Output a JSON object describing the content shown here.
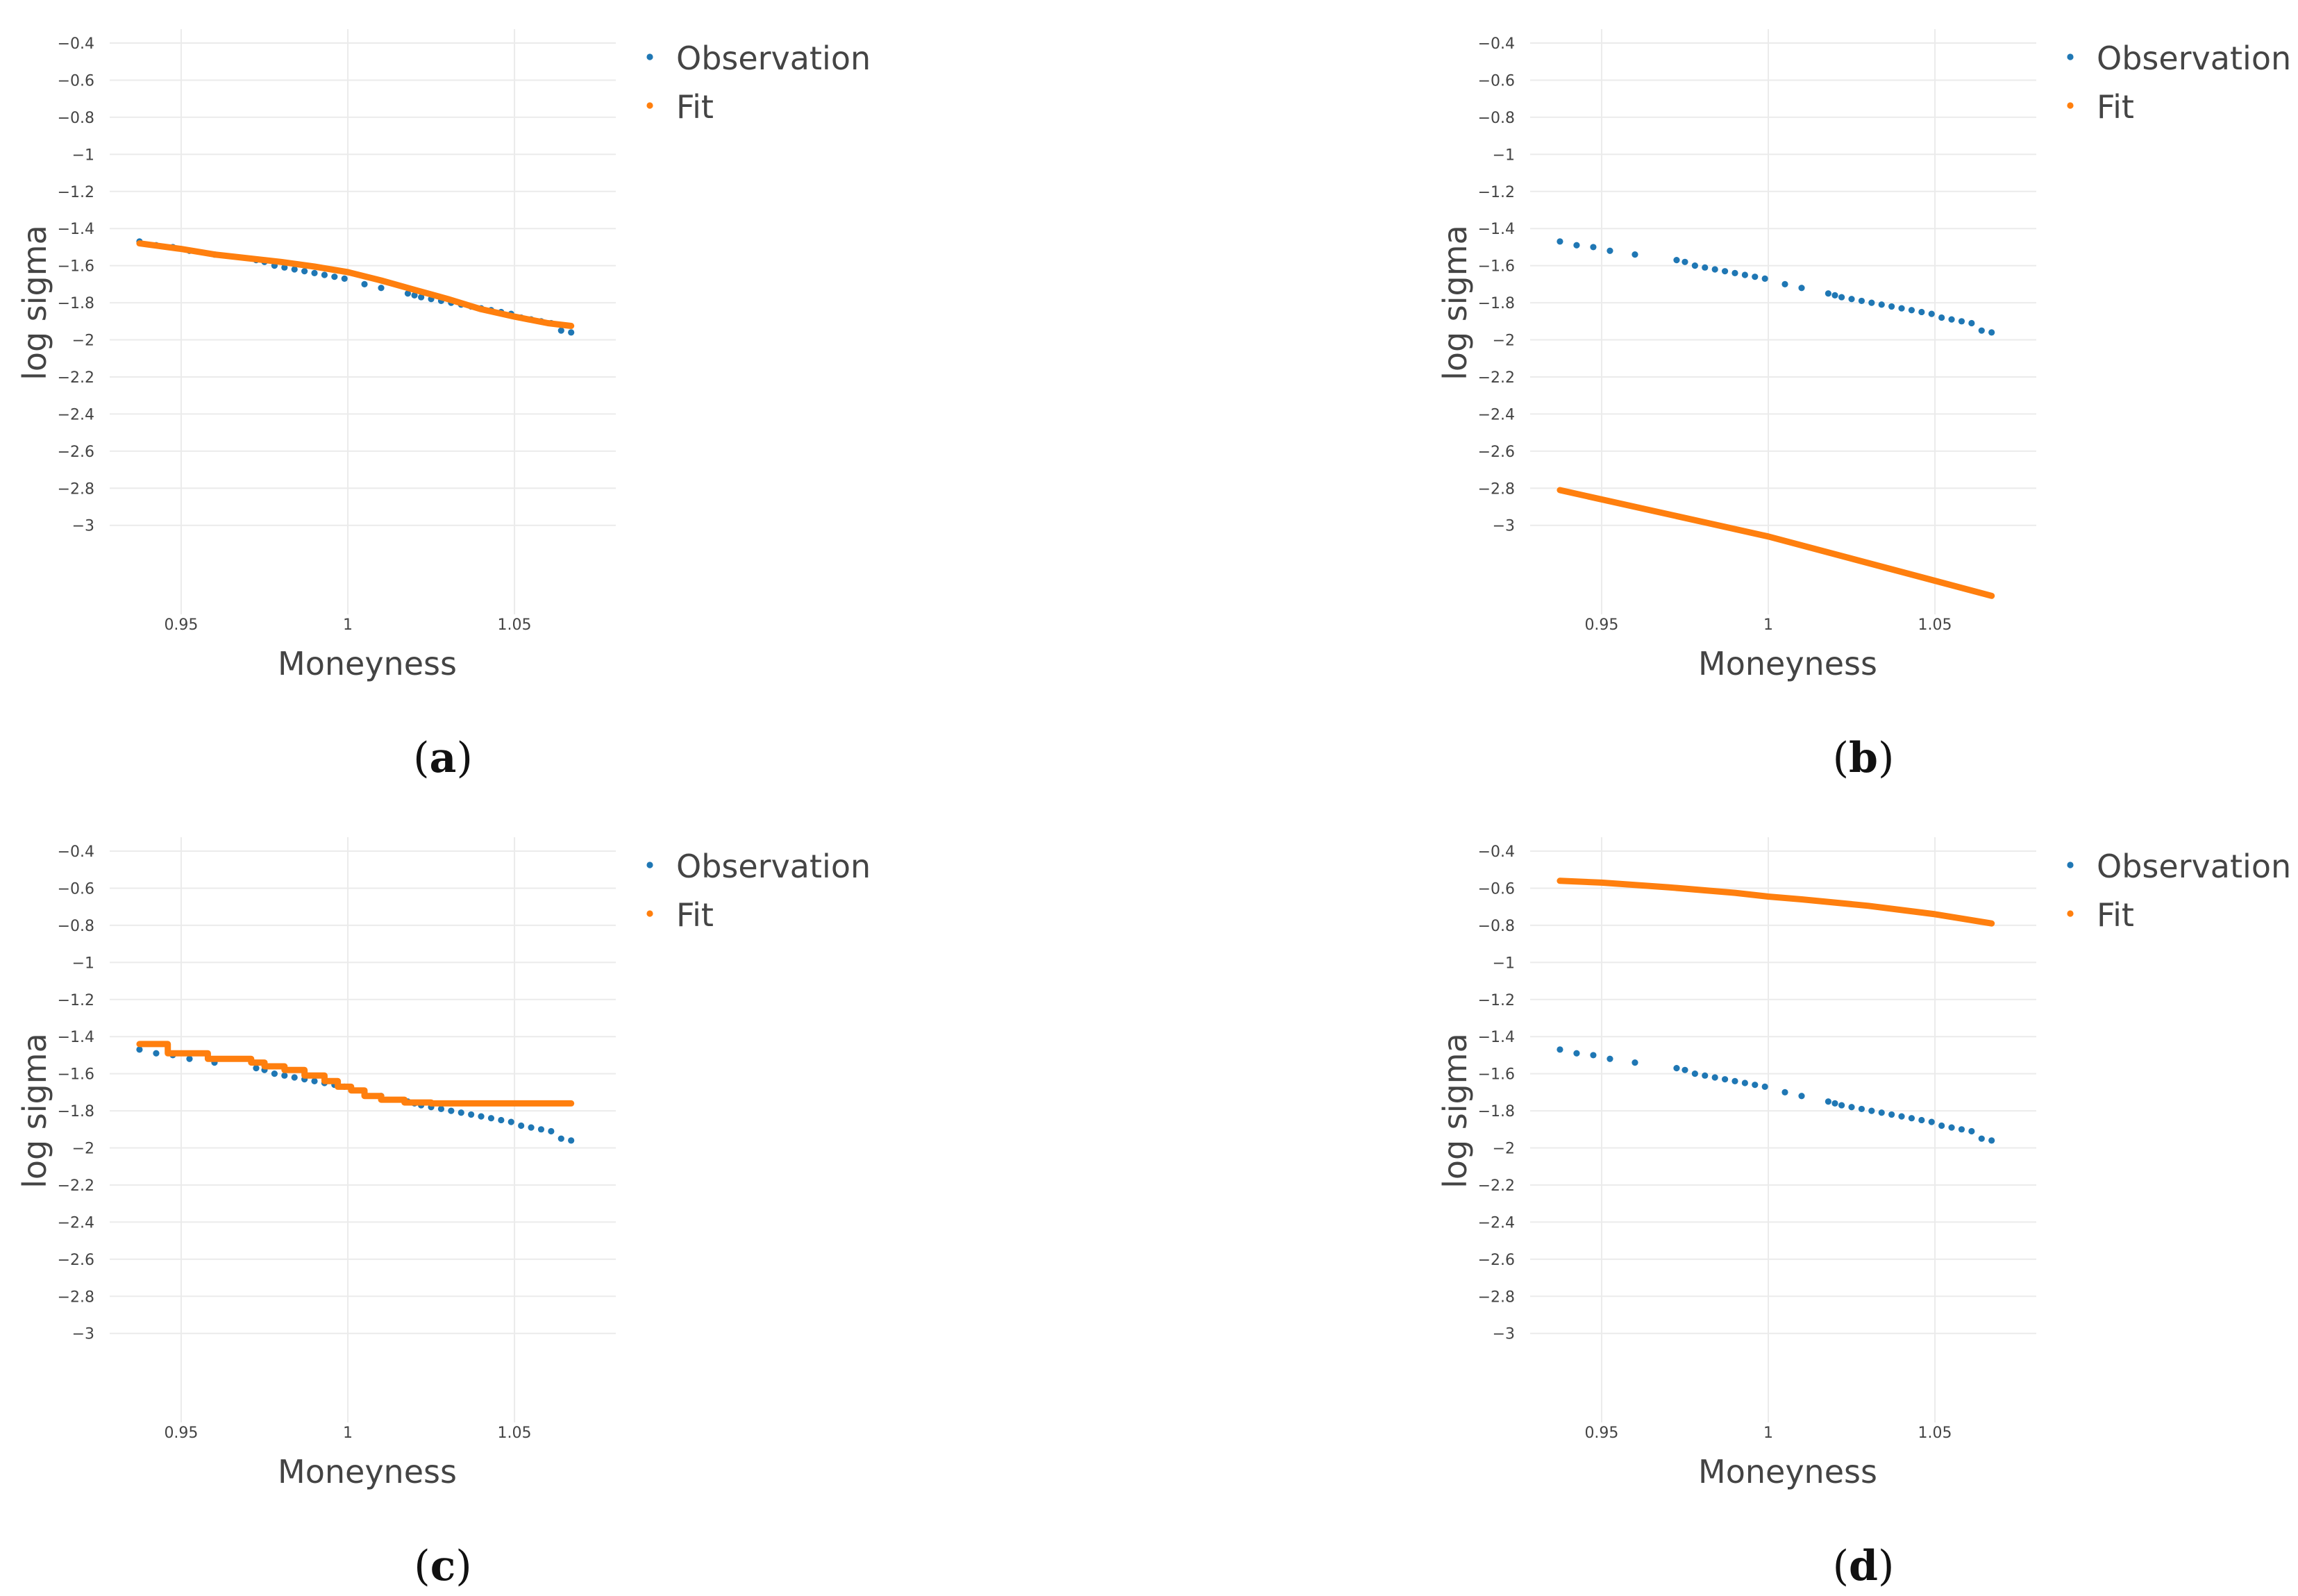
{
  "figure": {
    "colors": {
      "observation": "#1f77b4",
      "fit": "#ff7f0e"
    }
  },
  "chart_data": [
    {
      "type": "scatter",
      "panel_label": "a",
      "xlabel": "Moneyness",
      "ylabel": "log sigma",
      "xlim": [
        0.9296,
        1.0804
      ],
      "ylim": [
        -3.48,
        -0.4
      ],
      "x_ticks": [
        0.95,
        1,
        1.05
      ],
      "x_tick_labels": [
        "0.95",
        "1",
        "1.05"
      ],
      "y_ticks": [
        -0.4,
        -0.6,
        -0.8,
        -1,
        -1.2,
        -1.4,
        -1.6,
        -1.8,
        -2,
        -2.2,
        -2.4,
        -2.6,
        -2.8,
        -3
      ],
      "y_tick_labels": [
        "−0.4",
        "−0.6",
        "−0.8",
        "−1",
        "−1.2",
        "−1.4",
        "−1.6",
        "−1.8",
        "−2",
        "−2.2",
        "−2.4",
        "−2.6",
        "−2.8",
        "−3"
      ],
      "legend": {
        "placement": "top-right",
        "entries": [
          "Observation",
          "Fit"
        ]
      },
      "series": [
        {
          "name": "Observation",
          "mode": "markers",
          "x": [
            0.9375,
            0.9425,
            0.9475,
            0.9525,
            0.96,
            0.9725,
            0.975,
            0.978,
            0.981,
            0.984,
            0.987,
            0.99,
            0.993,
            0.996,
            0.999,
            1.005,
            1.01,
            1.018,
            1.02,
            1.022,
            1.025,
            1.028,
            1.031,
            1.034,
            1.037,
            1.04,
            1.043,
            1.046,
            1.049,
            1.052,
            1.055,
            1.058,
            1.061,
            1.064,
            1.067
          ],
          "y": [
            -1.47,
            -1.49,
            -1.5,
            -1.52,
            -1.54,
            -1.57,
            -1.58,
            -1.6,
            -1.61,
            -1.62,
            -1.63,
            -1.64,
            -1.65,
            -1.66,
            -1.67,
            -1.7,
            -1.72,
            -1.75,
            -1.76,
            -1.77,
            -1.78,
            -1.79,
            -1.8,
            -1.81,
            -1.82,
            -1.83,
            -1.84,
            -1.85,
            -1.86,
            -1.88,
            -1.89,
            -1.9,
            -1.91,
            -1.95,
            -1.96
          ]
        },
        {
          "name": "Fit",
          "mode": "lines",
          "x": [
            0.9375,
            0.95,
            0.96,
            0.97,
            0.98,
            0.99,
            1.0,
            1.01,
            1.02,
            1.03,
            1.04,
            1.05,
            1.06,
            1.067
          ],
          "y": [
            -1.48,
            -1.51,
            -1.54,
            -1.56,
            -1.58,
            -1.605,
            -1.635,
            -1.68,
            -1.73,
            -1.78,
            -1.835,
            -1.875,
            -1.91,
            -1.925
          ]
        }
      ]
    },
    {
      "type": "scatter",
      "panel_label": "b",
      "xlabel": "Moneyness",
      "ylabel": "log sigma",
      "xlim": [
        0.9296,
        1.0804
      ],
      "ylim": [
        -3.48,
        -0.4
      ],
      "x_ticks": [
        0.95,
        1,
        1.05
      ],
      "x_tick_labels": [
        "0.95",
        "1",
        "1.05"
      ],
      "y_ticks": [
        -0.4,
        -0.6,
        -0.8,
        -1,
        -1.2,
        -1.4,
        -1.6,
        -1.8,
        -2,
        -2.2,
        -2.4,
        -2.6,
        -2.8,
        -3
      ],
      "y_tick_labels": [
        "−0.4",
        "−0.6",
        "−0.8",
        "−1",
        "−1.2",
        "−1.4",
        "−1.6",
        "−1.8",
        "−2",
        "−2.2",
        "−2.4",
        "−2.6",
        "−2.8",
        "−3"
      ],
      "legend": {
        "placement": "top-right",
        "entries": [
          "Observation",
          "Fit"
        ]
      },
      "series": [
        {
          "name": "Observation",
          "mode": "markers",
          "x": [
            0.9375,
            0.9425,
            0.9475,
            0.9525,
            0.96,
            0.9725,
            0.975,
            0.978,
            0.981,
            0.984,
            0.987,
            0.99,
            0.993,
            0.996,
            0.999,
            1.005,
            1.01,
            1.018,
            1.02,
            1.022,
            1.025,
            1.028,
            1.031,
            1.034,
            1.037,
            1.04,
            1.043,
            1.046,
            1.049,
            1.052,
            1.055,
            1.058,
            1.061,
            1.064,
            1.067
          ],
          "y": [
            -1.47,
            -1.49,
            -1.5,
            -1.52,
            -1.54,
            -1.57,
            -1.58,
            -1.6,
            -1.61,
            -1.62,
            -1.63,
            -1.64,
            -1.65,
            -1.66,
            -1.67,
            -1.7,
            -1.72,
            -1.75,
            -1.76,
            -1.77,
            -1.78,
            -1.79,
            -1.8,
            -1.81,
            -1.82,
            -1.83,
            -1.84,
            -1.85,
            -1.86,
            -1.88,
            -1.89,
            -1.9,
            -1.91,
            -1.95,
            -1.96
          ]
        },
        {
          "name": "Fit",
          "mode": "lines",
          "x": [
            0.9375,
            1.0,
            1.067
          ],
          "y": [
            -2.81,
            -3.06,
            -3.38
          ]
        }
      ]
    },
    {
      "type": "scatter",
      "panel_label": "c",
      "xlabel": "Moneyness",
      "ylabel": "log sigma",
      "xlim": [
        0.9296,
        1.0804
      ],
      "ylim": [
        -3.48,
        -0.4
      ],
      "x_ticks": [
        0.95,
        1,
        1.05
      ],
      "x_tick_labels": [
        "0.95",
        "1",
        "1.05"
      ],
      "y_ticks": [
        -0.4,
        -0.6,
        -0.8,
        -1,
        -1.2,
        -1.4,
        -1.6,
        -1.8,
        -2,
        -2.2,
        -2.4,
        -2.6,
        -2.8,
        -3
      ],
      "y_tick_labels": [
        "−0.4",
        "−0.6",
        "−0.8",
        "−1",
        "−1.2",
        "−1.4",
        "−1.6",
        "−1.8",
        "−2",
        "−2.2",
        "−2.4",
        "−2.6",
        "−2.8",
        "−3"
      ],
      "legend": {
        "placement": "top-right",
        "entries": [
          "Observation",
          "Fit"
        ]
      },
      "series": [
        {
          "name": "Observation",
          "mode": "markers",
          "x": [
            0.9375,
            0.9425,
            0.9475,
            0.9525,
            0.96,
            0.9725,
            0.975,
            0.978,
            0.981,
            0.984,
            0.987,
            0.99,
            0.993,
            0.996,
            0.999,
            1.005,
            1.01,
            1.018,
            1.02,
            1.022,
            1.025,
            1.028,
            1.031,
            1.034,
            1.037,
            1.04,
            1.043,
            1.046,
            1.049,
            1.052,
            1.055,
            1.058,
            1.061,
            1.064,
            1.067
          ],
          "y": [
            -1.47,
            -1.49,
            -1.5,
            -1.52,
            -1.54,
            -1.57,
            -1.58,
            -1.6,
            -1.61,
            -1.62,
            -1.63,
            -1.64,
            -1.65,
            -1.66,
            -1.67,
            -1.7,
            -1.72,
            -1.75,
            -1.76,
            -1.77,
            -1.78,
            -1.79,
            -1.8,
            -1.81,
            -1.82,
            -1.83,
            -1.84,
            -1.85,
            -1.86,
            -1.88,
            -1.89,
            -1.9,
            -1.91,
            -1.95,
            -1.96
          ]
        },
        {
          "name": "Fit",
          "mode": "lines",
          "x": [
            0.9375,
            0.946,
            0.946,
            0.958,
            0.958,
            0.971,
            0.971,
            0.975,
            0.975,
            0.981,
            0.981,
            0.987,
            0.987,
            0.993,
            0.993,
            0.997,
            0.997,
            1.001,
            1.001,
            1.005,
            1.005,
            1.01,
            1.01,
            1.017,
            1.017,
            1.025,
            1.025,
            1.067
          ],
          "y": [
            -1.44,
            -1.44,
            -1.49,
            -1.49,
            -1.52,
            -1.52,
            -1.54,
            -1.54,
            -1.56,
            -1.56,
            -1.58,
            -1.58,
            -1.61,
            -1.61,
            -1.64,
            -1.64,
            -1.67,
            -1.67,
            -1.69,
            -1.69,
            -1.72,
            -1.72,
            -1.74,
            -1.74,
            -1.755,
            -1.755,
            -1.76,
            -1.76
          ]
        }
      ]
    },
    {
      "type": "scatter",
      "panel_label": "d",
      "xlabel": "Moneyness",
      "ylabel": "log sigma",
      "xlim": [
        0.9296,
        1.0804
      ],
      "ylim": [
        -3.48,
        -0.4
      ],
      "x_ticks": [
        0.95,
        1,
        1.05
      ],
      "x_tick_labels": [
        "0.95",
        "1",
        "1.05"
      ],
      "y_ticks": [
        -0.4,
        -0.6,
        -0.8,
        -1,
        -1.2,
        -1.4,
        -1.6,
        -1.8,
        -2,
        -2.2,
        -2.4,
        -2.6,
        -2.8,
        -3
      ],
      "y_tick_labels": [
        "−0.4",
        "−0.6",
        "−0.8",
        "−1",
        "−1.2",
        "−1.4",
        "−1.6",
        "−1.8",
        "−2",
        "−2.2",
        "−2.4",
        "−2.6",
        "−2.8",
        "−3"
      ],
      "legend": {
        "placement": "top-right",
        "entries": [
          "Observation",
          "Fit"
        ]
      },
      "series": [
        {
          "name": "Observation",
          "mode": "markers",
          "x": [
            0.9375,
            0.9425,
            0.9475,
            0.9525,
            0.96,
            0.9725,
            0.975,
            0.978,
            0.981,
            0.984,
            0.987,
            0.99,
            0.993,
            0.996,
            0.999,
            1.005,
            1.01,
            1.018,
            1.02,
            1.022,
            1.025,
            1.028,
            1.031,
            1.034,
            1.037,
            1.04,
            1.043,
            1.046,
            1.049,
            1.052,
            1.055,
            1.058,
            1.061,
            1.064,
            1.067
          ],
          "y": [
            -1.47,
            -1.49,
            -1.5,
            -1.52,
            -1.54,
            -1.57,
            -1.58,
            -1.6,
            -1.61,
            -1.62,
            -1.63,
            -1.64,
            -1.65,
            -1.66,
            -1.67,
            -1.7,
            -1.72,
            -1.75,
            -1.76,
            -1.77,
            -1.78,
            -1.79,
            -1.8,
            -1.81,
            -1.82,
            -1.83,
            -1.84,
            -1.85,
            -1.86,
            -1.88,
            -1.89,
            -1.9,
            -1.91,
            -1.95,
            -1.96
          ]
        },
        {
          "name": "Fit",
          "mode": "lines",
          "x": [
            0.9375,
            0.95,
            0.97,
            0.99,
            1.0,
            1.01,
            1.03,
            1.05,
            1.067
          ],
          "y": [
            -0.56,
            -0.57,
            -0.595,
            -0.625,
            -0.645,
            -0.66,
            -0.695,
            -0.74,
            -0.79
          ]
        }
      ]
    }
  ]
}
